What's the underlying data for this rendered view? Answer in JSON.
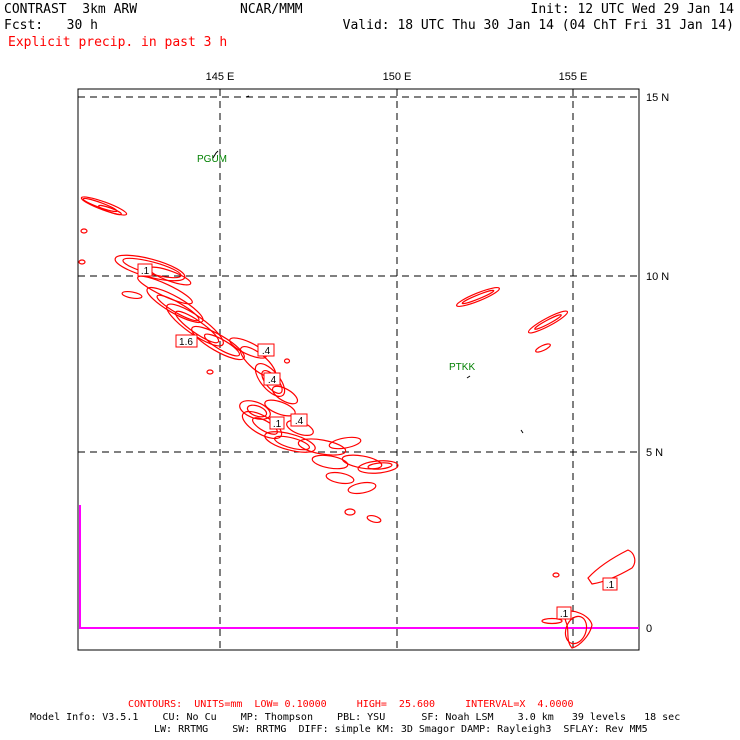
{
  "header": {
    "left_line1": "CONTRAST  3km ARW",
    "left_line2": "Fcst:   30 h",
    "left_line3": "Explicit precip. in past 3 h",
    "center_line1": "NCAR/MMM",
    "right_line1": "Init: 12 UTC Wed 29 Jan 14",
    "right_line2": "Valid: 18 UTC Thu 30 Jan 14 (04 ChT Fri 31 Jan 14)"
  },
  "map": {
    "lon_labels": [
      "145 E",
      "150 E",
      "155 E"
    ],
    "lat_labels": [
      "15 N",
      "10 N",
      "5 N",
      "0"
    ],
    "stations": [
      {
        "id": "PGUM",
        "text": "PGUM"
      },
      {
        "id": "PTKK",
        "text": "PTKK"
      }
    ],
    "contour_labels": [
      ".1",
      "1.6",
      ".4",
      ".4",
      ".1",
      ".4",
      ".1",
      ".1"
    ]
  },
  "footer": {
    "contours_line": "CONTOURS:  UNITS=mm  LOW= 0.10000     HIGH=  25.600     INTERVAL=X  4.0000",
    "model_line1": "Model Info: V3.5.1    CU: No Cu    MP: Thompson    PBL: YSU      SF: Noah LSM    3.0 km   39 levels   18 sec",
    "model_line2": "LW: RRTMG    SW: RRTMG  DIFF: simple KM: 3D Smagor DAMP: Rayleigh3  SFLAY: Rev MM5"
  },
  "colors": {
    "precip": "#ff0000",
    "station": "#008000",
    "boundary": "#ff00ff",
    "grid": "#000000"
  }
}
